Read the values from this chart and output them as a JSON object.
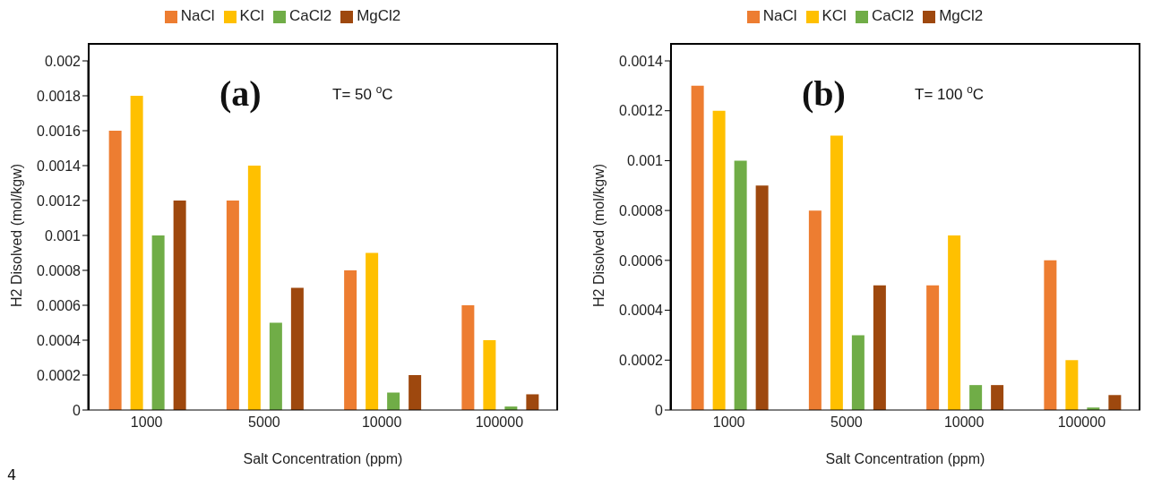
{
  "chart_data": [
    {
      "type": "bar",
      "xlabel": "Salt Concentration (ppm)",
      "ylabel": "H2 Disolved (mol/kgw)",
      "categories": [
        "1000",
        "5000",
        "10000",
        "100000"
      ],
      "series": [
        {
          "name": "NaCl",
          "color": "#ed7d31",
          "values": [
            0.0016,
            0.0012,
            0.0008,
            0.0006
          ]
        },
        {
          "name": "KCl",
          "color": "#ffc000",
          "values": [
            0.0018,
            0.0014,
            0.0009,
            0.0004
          ]
        },
        {
          "name": "CaCl2",
          "color": "#70ad47",
          "values": [
            0.001,
            0.0005,
            0.0001,
            2e-05
          ]
        },
        {
          "name": "MgCl2",
          "color": "#9e480e",
          "values": [
            0.0012,
            0.0007,
            0.0002,
            9e-05
          ]
        }
      ],
      "ylim": [
        0,
        0.002
      ],
      "yticks": [
        0,
        0.0002,
        0.0004,
        0.0006,
        0.0008,
        0.001,
        0.0012,
        0.0014,
        0.0016,
        0.0018,
        0.002
      ],
      "grid": false,
      "legend": "top",
      "annotations": [
        "(a)",
        "T= 50 $^{o}$C",
        "4"
      ]
    },
    {
      "type": "bar",
      "xlabel": "Salt Concentration (ppm)",
      "ylabel": "H2 Disolved (mol/kgw)",
      "categories": [
        "1000",
        "5000",
        "10000",
        "100000"
      ],
      "series": [
        {
          "name": "NaCl",
          "color": "#ed7d31",
          "values": [
            0.0013,
            0.0008,
            0.0005,
            0.0006
          ]
        },
        {
          "name": "KCl",
          "color": "#ffc000",
          "values": [
            0.0012,
            0.0011,
            0.0007,
            0.0002
          ]
        },
        {
          "name": "CaCl2",
          "color": "#70ad47",
          "values": [
            0.001,
            0.0003,
            0.0001,
            1e-05
          ]
        },
        {
          "name": "MgCl2",
          "color": "#9e480e",
          "values": [
            0.0009,
            0.0005,
            0.0001,
            6e-05
          ]
        }
      ],
      "ylim": [
        0,
        0.0014
      ],
      "yticks": [
        0,
        0.0002,
        0.0004,
        0.0006,
        0.0008,
        0.001,
        0.0012,
        0.0014
      ],
      "grid": false,
      "legend": "top",
      "annotations": [
        "(b)",
        "T= 100 $^{o}$C"
      ]
    }
  ]
}
